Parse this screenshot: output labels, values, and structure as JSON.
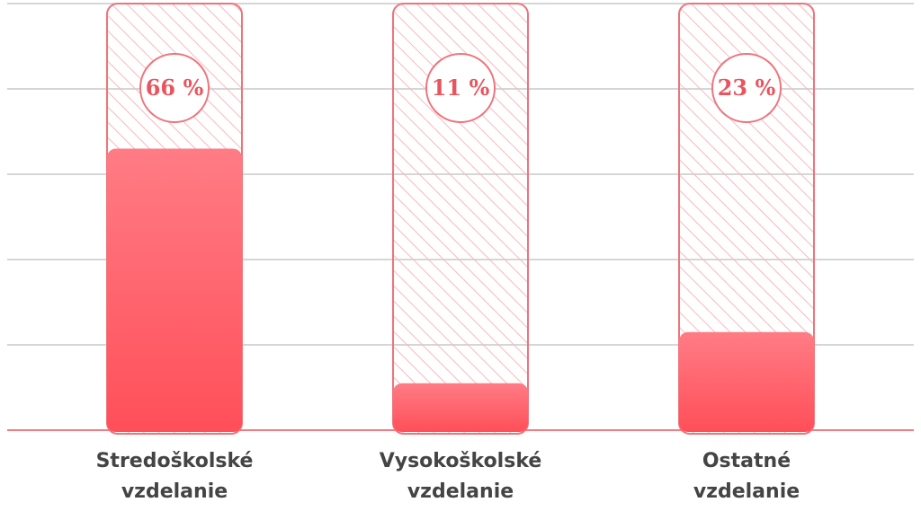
{
  "chart_data": {
    "type": "bar",
    "categories": [
      [
        "Stredoškolské",
        "vzdelanie"
      ],
      [
        "Vysokoškolské",
        "vzdelanie"
      ],
      [
        "Ostatné",
        "vzdelanie"
      ]
    ],
    "values": [
      66,
      11,
      23
    ],
    "value_labels": [
      "66 %",
      "11 %",
      "23 %"
    ],
    "ylim": [
      0,
      100
    ],
    "grid": true,
    "colors": {
      "bar_top": "#ff7c85",
      "bar_bottom": "#ff4f59",
      "outline": "#f0737b",
      "hatch": "#f7b9bd",
      "grid": "#c8c8c8",
      "baseline": "#f07b82",
      "label_text": "#444444",
      "pct_text": "#e8555e"
    }
  }
}
